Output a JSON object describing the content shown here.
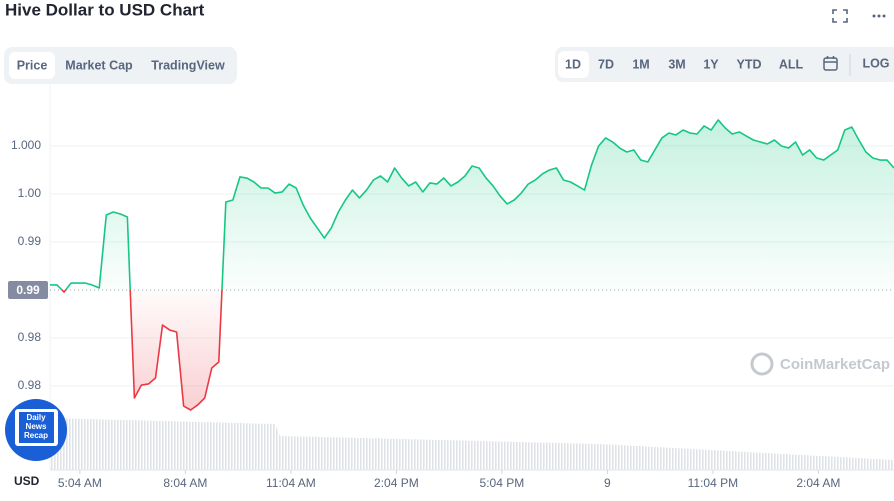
{
  "chart_data": {
    "type": "line",
    "title": "Hive Dollar to USD Chart",
    "x": [
      0,
      0.2,
      0.4,
      0.6,
      0.8,
      1,
      1.2,
      1.4,
      1.6,
      1.8,
      2,
      2.2,
      2.4,
      2.6,
      2.8,
      3,
      3.2,
      3.4,
      3.6,
      3.8,
      4,
      4.2,
      4.4,
      4.6,
      4.8,
      5,
      5.2,
      5.4,
      5.6,
      5.8,
      6,
      6.2,
      6.4,
      6.6,
      6.8,
      7,
      7.2,
      7.4,
      7.6,
      7.8,
      8,
      8.2,
      8.4,
      8.6,
      8.8,
      9,
      9.2,
      9.4,
      9.6,
      9.8,
      10,
      10.2,
      10.4,
      10.6,
      10.8,
      11,
      11.2,
      11.4,
      11.6,
      11.8,
      12,
      12.2,
      12.4,
      12.6,
      12.8,
      13,
      13.2,
      13.4,
      13.6,
      13.8,
      14,
      14.2,
      14.4,
      14.6,
      14.8,
      15,
      15.2,
      15.4,
      15.6,
      15.8,
      16,
      16.2,
      16.4,
      16.6,
      16.8,
      17,
      17.2,
      17.4,
      17.6,
      17.8,
      18,
      18.2,
      18.4,
      18.6,
      18.8,
      19,
      19.2,
      19.4,
      19.6,
      19.8,
      20,
      20.2,
      20.4,
      20.6,
      20.8,
      21,
      21.2,
      21.4,
      21.6,
      21.8,
      22,
      22.2,
      22.4,
      22.6,
      22.8,
      23,
      23.2,
      23.4,
      23.6,
      23.8,
      24
    ],
    "series": [
      {
        "name": "Price",
        "values": [
          0.98842,
          0.98842,
          0.98783,
          0.98858,
          0.98858,
          0.98858,
          0.98842,
          0.98817,
          0.99425,
          0.9945,
          0.99433,
          0.99408,
          0.979,
          0.98008,
          0.98017,
          0.98067,
          0.98508,
          0.98467,
          0.9845,
          0.97833,
          0.978,
          0.97842,
          0.979,
          0.9815,
          0.982,
          0.99533,
          0.9955,
          0.99742,
          0.99733,
          0.997,
          0.9965,
          0.9965,
          0.99608,
          0.99617,
          0.99683,
          0.9965,
          0.99508,
          0.994,
          0.99317,
          0.99233,
          0.99317,
          0.9945,
          0.9955,
          0.99633,
          0.99567,
          0.99633,
          0.99717,
          0.9975,
          0.997,
          0.99817,
          0.99733,
          0.99667,
          0.997,
          0.99617,
          0.99692,
          0.99683,
          0.99733,
          0.99667,
          0.997,
          0.9975,
          0.99833,
          0.99817,
          0.99733,
          0.99667,
          0.99583,
          0.99517,
          0.9955,
          0.99608,
          0.99683,
          0.99717,
          0.99767,
          0.998,
          0.99817,
          0.99717,
          0.997,
          0.99667,
          0.99633,
          0.99842,
          1.0,
          1.00067,
          1.00033,
          0.99983,
          0.9995,
          0.99967,
          0.99883,
          0.99867,
          0.99967,
          1.00067,
          1.00108,
          1.00092,
          1.00133,
          1.00108,
          1.001,
          1.00167,
          1.00133,
          1.00217,
          1.0015,
          1.001,
          1.00117,
          1.00083,
          1.0005,
          1.00033,
          1.00017,
          1.0005,
          1.0,
          0.99983,
          1.00033,
          0.99925,
          0.99967,
          0.999,
          0.99883,
          0.99925,
          0.99967,
          1.00133,
          1.00158,
          1.0005,
          0.9995,
          0.999,
          0.99883,
          0.99883,
          0.99817
        ]
      }
    ],
    "baseline": {
      "value": 0.988,
      "label": "0.99"
    },
    "colors": {
      "up": "#16c784",
      "down": "#ea3943"
    },
    "xlim": [
      0,
      24
    ],
    "xticks": [
      {
        "value": 0.85,
        "label": "5:04 AM"
      },
      {
        "value": 3.85,
        "label": "8:04 AM"
      },
      {
        "value": 6.85,
        "label": "11:04 AM"
      },
      {
        "value": 9.85,
        "label": "2:04 PM"
      },
      {
        "value": 12.85,
        "label": "5:04 PM"
      },
      {
        "value": 15.85,
        "label": "9"
      },
      {
        "value": 18.85,
        "label": "11:04 PM"
      },
      {
        "value": 21.85,
        "label": "2:04 AM"
      }
    ],
    "ylim": [
      0.973,
      1.00425
    ],
    "yticks": [
      {
        "value": 1.0,
        "label": "1.000"
      },
      {
        "value": 0.996,
        "label": "1.00"
      },
      {
        "value": 0.992,
        "label": "0.99"
      },
      {
        "value": 0.984,
        "label": "0.98"
      },
      {
        "value": 0.98,
        "label": "0.98"
      }
    ],
    "grid": true
  },
  "ui": {
    "tabs": [
      "Price",
      "Market Cap",
      "TradingView"
    ],
    "ranges": [
      "1D",
      "7D",
      "1M",
      "3M",
      "1Y",
      "YTD",
      "ALL"
    ],
    "log": "LOG",
    "currency": "USD",
    "watermark": "CoinMarketCap",
    "badge": [
      "Daily",
      "News",
      "Recap"
    ]
  }
}
